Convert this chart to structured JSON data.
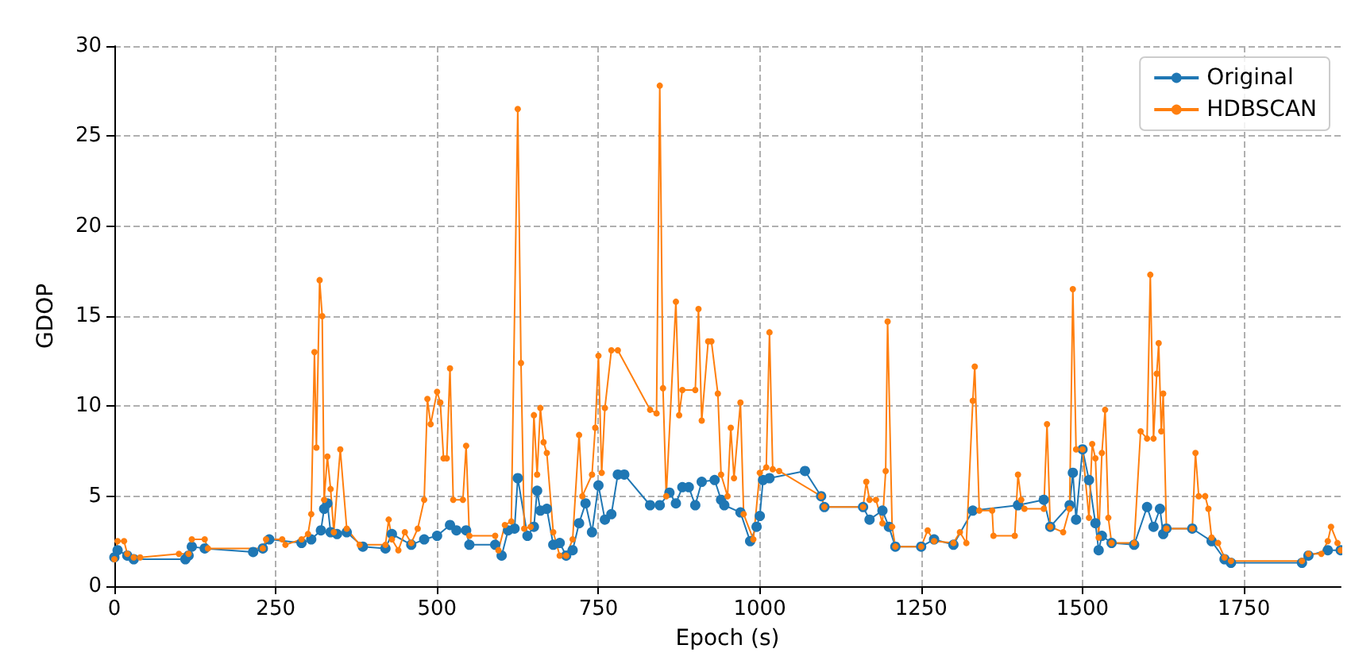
{
  "chart_data": {
    "type": "line",
    "xlabel": "Epoch (s)",
    "ylabel": "GDOP",
    "xlim": [
      0,
      1900
    ],
    "xticks": [
      0,
      250,
      500,
      750,
      1000,
      1250,
      1500,
      1750
    ],
    "ylim": [
      0,
      30
    ],
    "yticks": [
      0,
      5,
      10,
      15,
      20,
      25,
      30
    ],
    "grid": true,
    "legend": "top right",
    "marker": "circle",
    "line_style": "solid",
    "series": [
      {
        "name": "Original",
        "color": "#1f77b4",
        "x": [
          0,
          5,
          20,
          30,
          110,
          115,
          120,
          140,
          215,
          230,
          240,
          290,
          305,
          320,
          325,
          330,
          335,
          345,
          360,
          385,
          420,
          430,
          460,
          480,
          500,
          520,
          530,
          545,
          550,
          590,
          600,
          610,
          620,
          625,
          640,
          650,
          655,
          660,
          670,
          680,
          690,
          700,
          710,
          720,
          730,
          740,
          750,
          760,
          770,
          780,
          790,
          830,
          845,
          860,
          870,
          880,
          890,
          900,
          910,
          930,
          940,
          945,
          970,
          985,
          995,
          1000,
          1005,
          1015,
          1070,
          1095,
          1100,
          1160,
          1170,
          1190,
          1200,
          1210,
          1250,
          1270,
          1300,
          1330,
          1400,
          1440,
          1450,
          1480,
          1485,
          1490,
          1500,
          1510,
          1520,
          1525,
          1530,
          1545,
          1580,
          1600,
          1610,
          1620,
          1625,
          1630,
          1670,
          1700,
          1720,
          1730,
          1840,
          1850,
          1880,
          1900
        ],
        "values": [
          1.6,
          2.0,
          1.7,
          1.5,
          1.5,
          1.7,
          2.2,
          2.1,
          1.9,
          2.1,
          2.6,
          2.4,
          2.6,
          3.1,
          4.3,
          4.6,
          3.0,
          2.9,
          3.0,
          2.2,
          2.1,
          2.9,
          2.3,
          2.6,
          2.8,
          3.4,
          3.1,
          3.1,
          2.3,
          2.3,
          1.7,
          3.1,
          3.2,
          6,
          2.8,
          3.3,
          5.3,
          4.2,
          4.3,
          2.3,
          2.4,
          1.7,
          2.0,
          3.5,
          4.6,
          3,
          5.6,
          3.7,
          4,
          6.2,
          6.2,
          4.5,
          4.5,
          5.2,
          4.6,
          5.5,
          5.5,
          4.5,
          5.8,
          5.9,
          4.8,
          4.5,
          4.1,
          2.5,
          3.3,
          3.9,
          5.9,
          6.0,
          6.4,
          5.0,
          4.4,
          4.4,
          3.7,
          4.2,
          3.3,
          2.2,
          2.2,
          2.6,
          2.3,
          4.2,
          4.5,
          4.8,
          3.3,
          4.5,
          6.3,
          3.7,
          7.6,
          5.9,
          3.5,
          2.0,
          2.8,
          2.4,
          2.3,
          4.4,
          3.3,
          4.3,
          2.9,
          3.2,
          3.2,
          2.5,
          1.5,
          1.3,
          1.3,
          1.7,
          2.0,
          2.0
        ]
      },
      {
        "name": "HDBSCAN",
        "color": "#ff7f0e",
        "x": [
          0,
          5,
          15,
          20,
          30,
          40,
          100,
          115,
          120,
          140,
          145,
          230,
          235,
          260,
          265,
          290,
          300,
          305,
          310,
          313,
          318,
          322,
          325,
          330,
          335,
          340,
          350,
          360,
          380,
          420,
          425,
          430,
          440,
          450,
          460,
          470,
          480,
          485,
          490,
          500,
          505,
          510,
          515,
          520,
          525,
          540,
          545,
          550,
          590,
          595,
          605,
          615,
          625,
          630,
          635,
          645,
          650,
          655,
          660,
          665,
          670,
          680,
          690,
          700,
          710,
          720,
          725,
          740,
          745,
          750,
          755,
          760,
          770,
          780,
          830,
          840,
          845,
          850,
          855,
          870,
          875,
          880,
          900,
          905,
          910,
          920,
          925,
          935,
          940,
          950,
          955,
          960,
          970,
          975,
          990,
          1000,
          1010,
          1015,
          1020,
          1030,
          1095,
          1100,
          1160,
          1165,
          1170,
          1180,
          1190,
          1195,
          1198,
          1205,
          1210,
          1250,
          1260,
          1270,
          1300,
          1310,
          1320,
          1330,
          1333,
          1340,
          1360,
          1362,
          1395,
          1400,
          1405,
          1410,
          1440,
          1445,
          1450,
          1470,
          1480,
          1485,
          1490,
          1500,
          1510,
          1515,
          1520,
          1525,
          1530,
          1535,
          1540,
          1545,
          1580,
          1590,
          1600,
          1605,
          1610,
          1615,
          1618,
          1622,
          1625,
          1630,
          1670,
          1675,
          1680,
          1690,
          1695,
          1700,
          1710,
          1720,
          1730,
          1840,
          1850,
          1870,
          1880,
          1885,
          1895,
          1900
        ],
        "values": [
          1.5,
          2.5,
          2.5,
          1.8,
          1.6,
          1.6,
          1.8,
          1.8,
          2.6,
          2.6,
          2.1,
          2.1,
          2.6,
          2.6,
          2.3,
          2.6,
          2.9,
          4,
          13,
          7.7,
          17,
          15,
          4.8,
          7.2,
          5.4,
          3,
          7.6,
          3.2,
          2.3,
          2.3,
          3.7,
          2.6,
          2.0,
          3,
          2.4,
          3.2,
          4.8,
          10.4,
          9,
          10.8,
          10.2,
          7.1,
          7.1,
          12.1,
          4.8,
          4.8,
          7.8,
          2.8,
          2.8,
          2.0,
          3.4,
          3.6,
          26.5,
          12.4,
          3.2,
          3.3,
          9.5,
          6.2,
          9.9,
          8,
          7.4,
          3,
          1.7,
          1.7,
          2.6,
          8.4,
          5,
          6.2,
          8.8,
          12.8,
          6.3,
          9.9,
          13.1,
          13.1,
          9.8,
          9.6,
          27.8,
          11,
          5,
          15.8,
          9.5,
          10.9,
          10.9,
          15.4,
          9.2,
          13.6,
          13.6,
          10.7,
          6.2,
          5.0,
          8.8,
          6.0,
          10.2,
          4,
          2.6,
          6.3,
          6.6,
          14.1,
          6.5,
          6.4,
          5,
          4.4,
          4.4,
          5.8,
          4.8,
          4.8,
          3.5,
          6.4,
          14.7,
          3.3,
          2.2,
          2.2,
          3.1,
          2.5,
          2.4,
          3.0,
          2.4,
          10.3,
          12.2,
          4.2,
          4.2,
          2.8,
          2.8,
          6.2,
          4.8,
          4.3,
          4.3,
          9,
          3.3,
          3,
          4.3,
          16.5,
          7.6,
          7.6,
          3.8,
          7.9,
          7.1,
          2.7,
          7.4,
          9.8,
          3.8,
          2.4,
          2.4,
          8.6,
          8.2,
          17.3,
          8.2,
          11.8,
          13.5,
          8.6,
          10.7,
          3.2,
          3.2,
          7.4,
          5,
          5,
          4.3,
          2.7,
          2.4,
          1.6,
          1.4,
          1.4,
          1.8,
          1.8,
          2.5,
          3.3,
          2.4,
          2.0
        ]
      }
    ]
  }
}
